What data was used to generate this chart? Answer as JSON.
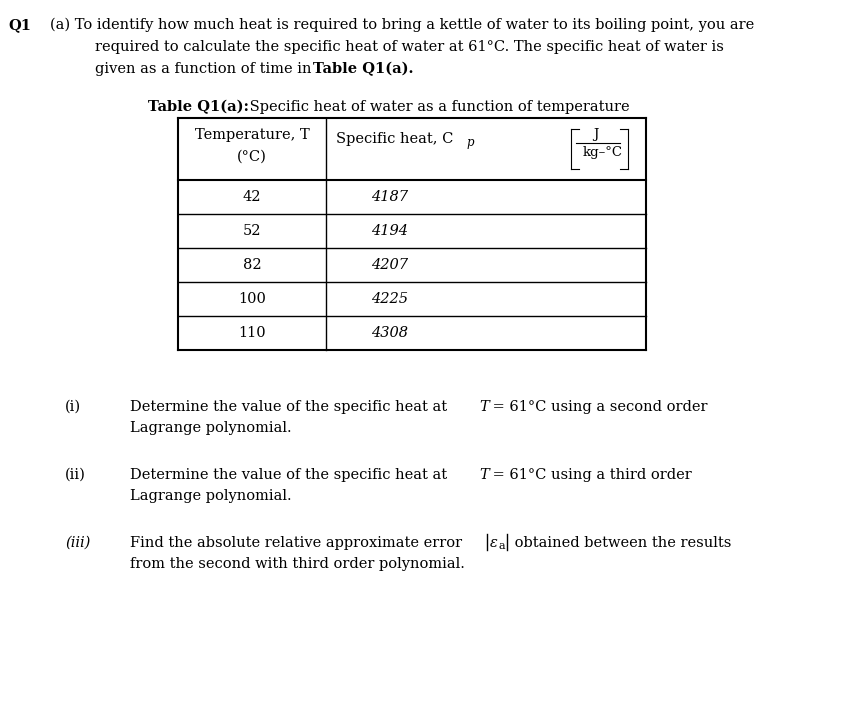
{
  "bg_color": "#ffffff",
  "text_color": "#000000",
  "font_size": 10.5,
  "page_width": 8.5,
  "page_height": 7.01,
  "dpi": 100,
  "table_data": [
    [
      "42",
      "4187"
    ],
    [
      "52",
      "4194"
    ],
    [
      "82",
      "4207"
    ],
    [
      "100",
      "4225"
    ],
    [
      "110",
      "4308"
    ]
  ]
}
